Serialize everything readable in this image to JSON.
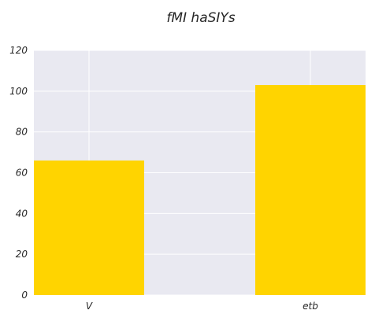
{
  "chart_data": {
    "type": "bar",
    "title": "fMI haSIYs",
    "xlabel": "",
    "ylabel": "",
    "categories": [
      "V",
      "etb"
    ],
    "values": [
      66,
      103
    ],
    "ylim": [
      0,
      120
    ],
    "yticks": [
      0,
      20,
      40,
      60,
      80,
      100,
      120
    ],
    "grid": true,
    "bar_color": "#ffd400",
    "plot_background": "#e9e9f1",
    "grid_color": "#ffffff"
  }
}
